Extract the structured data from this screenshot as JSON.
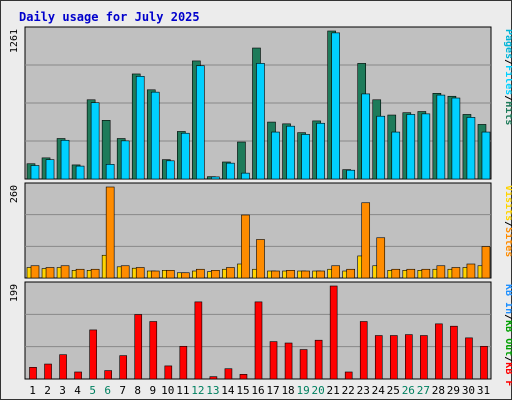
{
  "chart_data": {
    "type": "bar",
    "title": "Daily usage for July 2025",
    "colors": {
      "hits": "#1e7b5a",
      "files": "#00d0ff",
      "pages": "#00b4d8",
      "sites": "#ff8c00",
      "visits": "#ffd400",
      "kbin": "#1e90ff",
      "kbout": "#00a000",
      "kbf": "#ff0000",
      "title": "#0000cc",
      "weekend": "#008060",
      "panel_bg": "#c0c0c0",
      "grid": "#888888"
    },
    "days": [
      "1",
      "2",
      "3",
      "4",
      "5",
      "6",
      "7",
      "8",
      "9",
      "10",
      "11",
      "12",
      "13",
      "14",
      "15",
      "16",
      "17",
      "18",
      "19",
      "20",
      "21",
      "22",
      "23",
      "24",
      "25",
      "26",
      "27",
      "28",
      "29",
      "30",
      "31"
    ],
    "weekend_days": [
      "5",
      "6",
      "12",
      "13",
      "19",
      "20",
      "26",
      "27"
    ],
    "panels": [
      {
        "ymax": 1261,
        "ymax_label": "1261",
        "legend": [
          {
            "text": "Hits",
            "color": "#1e7b5a"
          },
          {
            "text": "/",
            "color": "#000000"
          },
          {
            "text": "Files",
            "color": "#00d0ff"
          },
          {
            "text": "/",
            "color": "#000000"
          },
          {
            "text": "Pages",
            "color": "#00b4d8"
          }
        ],
        "series": [
          {
            "name": "Hits",
            "color": "#1e7b5a",
            "values": [
              130,
              180,
              345,
              120,
              675,
              500,
              345,
              895,
              760,
              165,
              405,
              1006,
              20,
              145,
              315,
              1116,
              485,
              470,
              395,
              495,
              1261,
              80,
              985,
              675,
              545,
              565,
              575,
              730,
              705,
              550,
              465
            ]
          },
          {
            "name": "Files",
            "color": "#00d0ff",
            "values": [
              115,
              165,
              330,
              110,
              650,
              125,
              325,
              875,
              740,
              155,
              390,
              965,
              18,
              135,
              50,
              985,
              400,
              450,
              380,
              475,
              1245,
              75,
              725,
              535,
              400,
              550,
              555,
              715,
              690,
              525,
              400
            ]
          }
        ]
      },
      {
        "ymax": 260,
        "ymax_label": "260",
        "legend": [
          {
            "text": "Sites",
            "color": "#ff8c00"
          },
          {
            "text": "/",
            "color": "#000000"
          },
          {
            "text": "Visits",
            "color": "#ffd400"
          }
        ],
        "series": [
          {
            "name": "Visits",
            "color": "#ffd400",
            "values": [
              30,
              27,
              30,
              22,
              22,
              65,
              32,
              28,
              20,
              22,
              15,
              20,
              18,
              25,
              40,
              25,
              20,
              20,
              20,
              20,
              25,
              20,
              63,
              35,
              22,
              22,
              22,
              25,
              25,
              30,
              35
            ]
          },
          {
            "name": "Sites",
            "color": "#ff8c00",
            "values": [
              35,
              30,
              35,
              25,
              25,
              260,
              35,
              30,
              20,
              22,
              15,
              25,
              22,
              30,
              180,
              110,
              20,
              22,
              20,
              20,
              35,
              25,
              215,
              115,
              25,
              25,
              25,
              35,
              30,
              40,
              90
            ]
          }
        ]
      },
      {
        "ymax": 199,
        "ymax_label": "199",
        "legend": [
          {
            "text": "KB F",
            "color": "#ff0000"
          },
          {
            "text": "/",
            "color": "#000000"
          },
          {
            "text": "KB Out",
            "color": "#00a000"
          },
          {
            "text": "/",
            "color": "#000000"
          },
          {
            "text": "KB In",
            "color": "#1e90ff"
          }
        ],
        "series": [
          {
            "name": "KB F",
            "color": "#ff0000",
            "values": [
              25,
              32,
              52,
              15,
              105,
              18,
              50,
              138,
              123,
              28,
              70,
              165,
              5,
              22,
              10,
              165,
              80,
              77,
              63,
              83,
              199,
              15,
              123,
              93,
              93,
              95,
              93,
              118,
              113,
              88,
              70
            ]
          }
        ]
      }
    ]
  }
}
